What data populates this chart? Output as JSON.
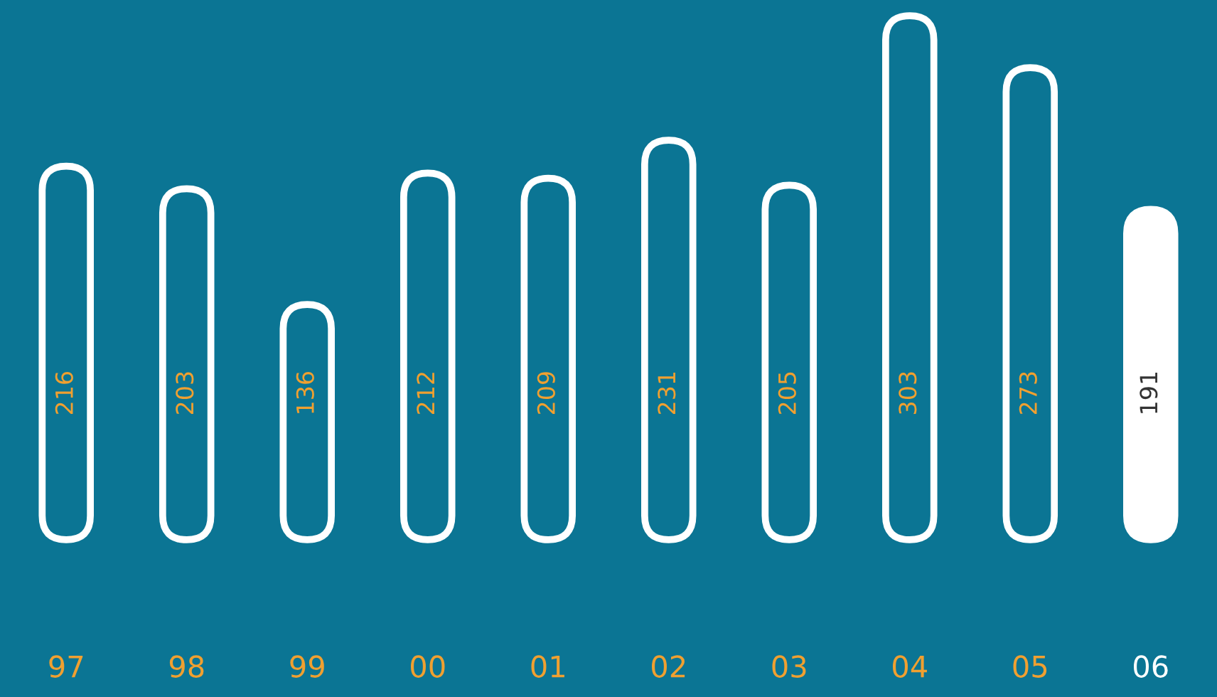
{
  "chart_data": {
    "type": "bar",
    "categories": [
      "97",
      "98",
      "99",
      "00",
      "01",
      "02",
      "03",
      "04",
      "05",
      "06"
    ],
    "values": [
      216,
      203,
      136,
      212,
      209,
      231,
      205,
      303,
      273,
      191
    ],
    "colors": [
      "#0b7594",
      "#0b7594",
      "#0b7594",
      "#0b7594",
      "#0b7594",
      "#0b7594",
      "#0b7594",
      "#0b7594",
      "#0b7594",
      "#ffffff"
    ],
    "data_labels": true,
    "tick_labels": "x"
  }
}
